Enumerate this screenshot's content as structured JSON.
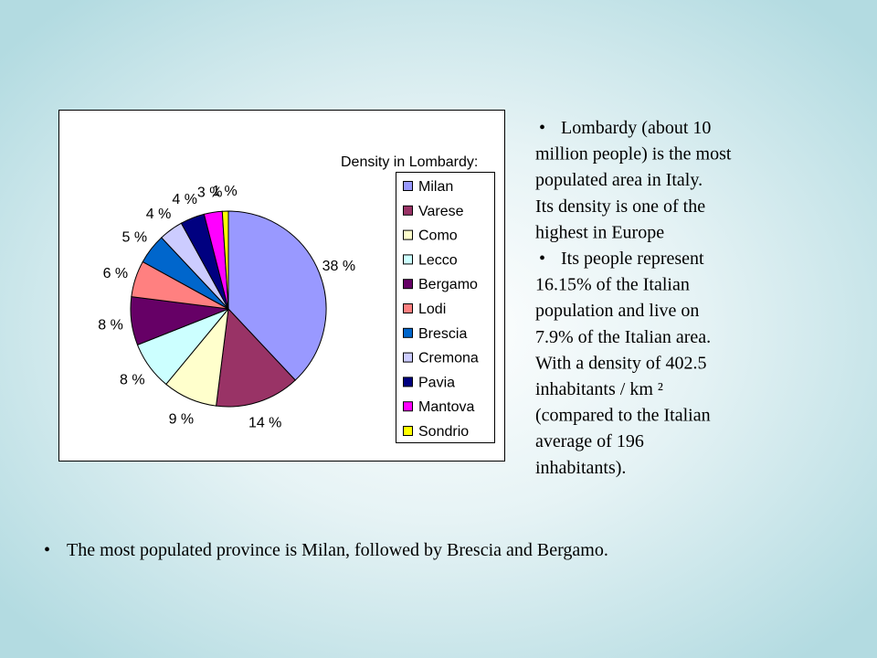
{
  "chart_data": {
    "type": "pie",
    "legend_title": "Density in Lombardy:",
    "categories": [
      "Milan",
      "Varese",
      "Como",
      "Lecco",
      "Bergamo",
      "Lodi",
      "Brescia",
      "Cremona",
      "Pavia",
      "Mantova",
      "Sondrio"
    ],
    "values": [
      38,
      14,
      9,
      8,
      8,
      6,
      5,
      4,
      4,
      3,
      1
    ],
    "value_labels": [
      "38 %",
      "14 %",
      "9 %",
      "8 %",
      "8 %",
      "6 %",
      "5 %",
      "4 %",
      "4 %",
      "3 %",
      "1 %"
    ],
    "colors": [
      "#9999ff",
      "#993366",
      "#ffffcc",
      "#ccffff",
      "#660066",
      "#ff8080",
      "#0066cc",
      "#ccccff",
      "#000080",
      "#ff00ff",
      "#ffff00"
    ],
    "legend": "right"
  },
  "side_text": [
    [
      "Lombardy (about 10",
      "million people) is the  most",
      "populated area in Italy.",
      "Its density is one of the",
      "highest in Europe"
    ],
    [
      "Its people represent",
      "16.15%  of the Italian",
      "population and live on",
      "7.9% of the Italian area.",
      "With a  density of 402.5",
      "inhabitants / km ²",
      "(compared to the Italian",
      "average of 196",
      "inhabitants)."
    ]
  ],
  "bottom_text": "The most populated province is  Milan, followed by Brescia and Bergamo."
}
